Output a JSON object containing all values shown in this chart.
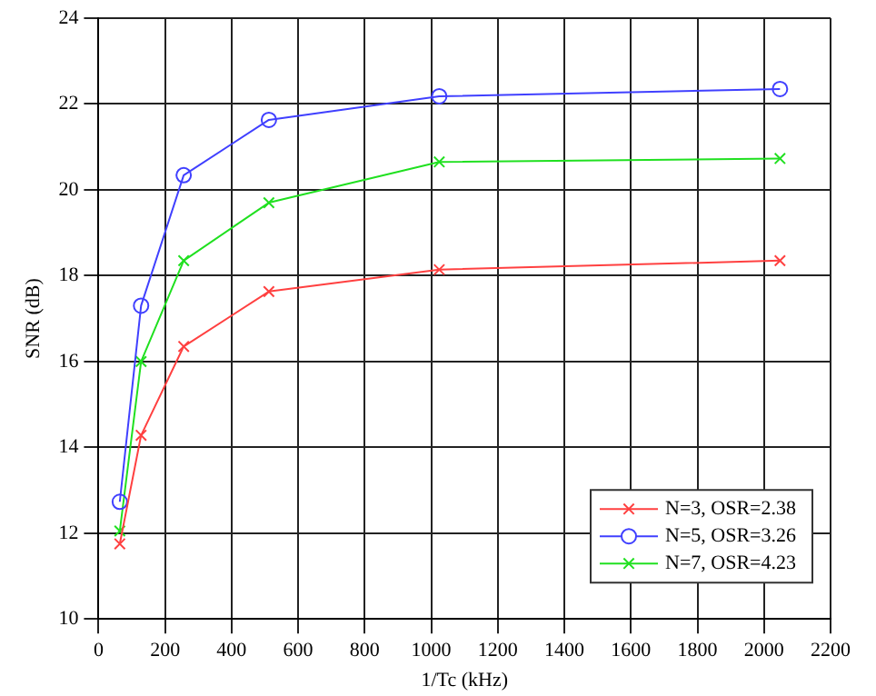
{
  "chart_data": {
    "type": "line",
    "xlabel": "1/Tc (kHz)",
    "ylabel": "SNR (dB)",
    "x": [
      64,
      128,
      256,
      512,
      1024,
      2048
    ],
    "series": [
      {
        "name": "N=3, OSR=2.38",
        "color": "#ff4040",
        "marker": "cross",
        "values": [
          11.75,
          14.28,
          16.35,
          17.63,
          18.14,
          18.35
        ]
      },
      {
        "name": "N=5, OSR=3.26",
        "color": "#4040ff",
        "marker": "circle",
        "values": [
          12.73,
          17.3,
          20.34,
          21.63,
          22.18,
          22.35
        ]
      },
      {
        "name": "N=7, OSR=4.23",
        "color": "#20e020",
        "marker": "cross",
        "values": [
          12.05,
          16.0,
          18.35,
          19.7,
          20.65,
          20.73
        ]
      }
    ],
    "xlim": [
      0,
      2200
    ],
    "xticks": [
      0,
      200,
      400,
      600,
      800,
      1000,
      1200,
      1400,
      1600,
      1800,
      2000,
      2200
    ],
    "ylim": [
      10,
      24
    ],
    "yticks": [
      10,
      12,
      14,
      16,
      18,
      20,
      22,
      24
    ],
    "grid": true,
    "legend": "bottom right"
  }
}
